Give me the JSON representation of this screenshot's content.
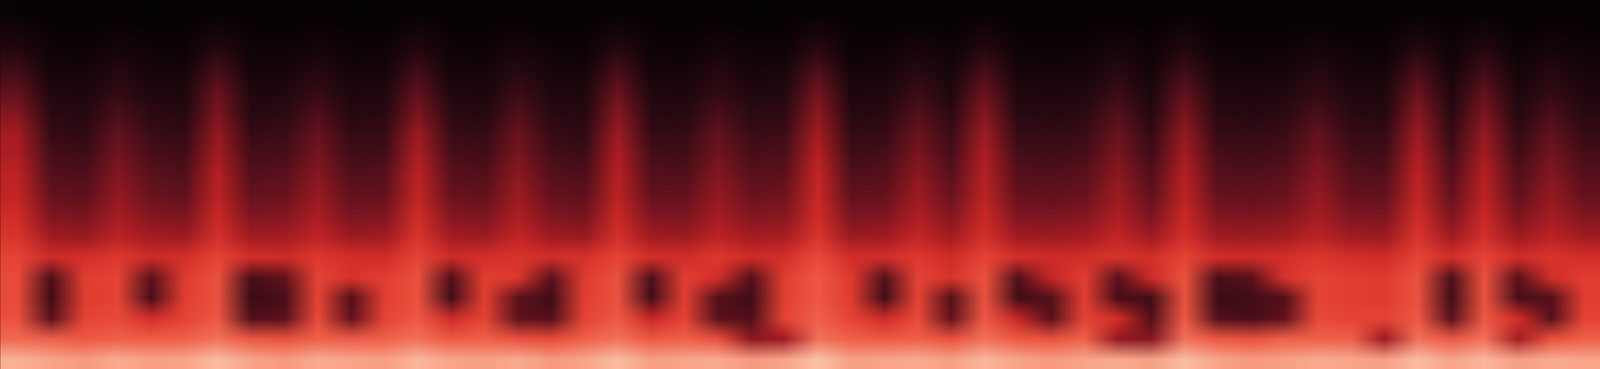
{
  "chart_data": {
    "type": "heatmap",
    "tick_labels": false,
    "zlim": [
      0,
      100
    ],
    "cells": [
      [
        3,
        2,
        2,
        2,
        1,
        2,
        3,
        2,
        2,
        2,
        1,
        2,
        3,
        2,
        2,
        2,
        2,
        1,
        3,
        2,
        2,
        2,
        1,
        2,
        3,
        2,
        2,
        1,
        2,
        3,
        2,
        2,
        2,
        2,
        1,
        3,
        2,
        2,
        2,
        1,
        2,
        2,
        3,
        2,
        3,
        2,
        2,
        2
      ],
      [
        8,
        4,
        3,
        5,
        4,
        4,
        8,
        4,
        3,
        5,
        4,
        3,
        8,
        4,
        4,
        5,
        3,
        4,
        8,
        4,
        3,
        5,
        4,
        4,
        9,
        4,
        3,
        5,
        4,
        8,
        4,
        3,
        4,
        5,
        4,
        8,
        3,
        4,
        4,
        5,
        3,
        4,
        8,
        4,
        8,
        3,
        5,
        4
      ],
      [
        14,
        6,
        5,
        9,
        6,
        5,
        15,
        6,
        6,
        9,
        5,
        6,
        14,
        6,
        5,
        10,
        6,
        5,
        15,
        6,
        5,
        9,
        6,
        6,
        16,
        5,
        6,
        10,
        6,
        15,
        6,
        5,
        6,
        10,
        5,
        14,
        6,
        5,
        6,
        9,
        6,
        5,
        15,
        6,
        14,
        5,
        9,
        6
      ],
      [
        22,
        9,
        8,
        14,
        9,
        8,
        24,
        9,
        9,
        14,
        8,
        9,
        22,
        9,
        8,
        15,
        9,
        8,
        24,
        9,
        8,
        14,
        9,
        10,
        26,
        8,
        9,
        15,
        9,
        24,
        9,
        8,
        9,
        15,
        8,
        22,
        9,
        8,
        9,
        14,
        9,
        8,
        24,
        9,
        22,
        8,
        14,
        9
      ],
      [
        30,
        12,
        11,
        18,
        12,
        11,
        32,
        12,
        12,
        19,
        11,
        12,
        30,
        12,
        11,
        20,
        12,
        11,
        32,
        12,
        11,
        18,
        12,
        13,
        34,
        11,
        12,
        20,
        12,
        32,
        12,
        11,
        12,
        20,
        11,
        30,
        12,
        11,
        12,
        18,
        12,
        11,
        32,
        12,
        30,
        11,
        18,
        12
      ],
      [
        38,
        15,
        14,
        24,
        16,
        14,
        36,
        15,
        16,
        25,
        14,
        15,
        36,
        16,
        14,
        26,
        15,
        14,
        38,
        15,
        14,
        24,
        16,
        17,
        40,
        14,
        15,
        26,
        16,
        38,
        15,
        14,
        16,
        26,
        14,
        36,
        15,
        14,
        16,
        24,
        15,
        14,
        38,
        15,
        36,
        14,
        24,
        15
      ],
      [
        46,
        19,
        17,
        30,
        20,
        18,
        42,
        19,
        20,
        31,
        18,
        19,
        44,
        20,
        18,
        32,
        19,
        17,
        44,
        19,
        18,
        30,
        20,
        21,
        46,
        18,
        19,
        32,
        20,
        44,
        19,
        18,
        20,
        32,
        18,
        42,
        19,
        18,
        20,
        30,
        19,
        18,
        44,
        19,
        42,
        18,
        30,
        19
      ],
      [
        48,
        23,
        21,
        34,
        24,
        22,
        46,
        23,
        24,
        35,
        22,
        23,
        48,
        24,
        22,
        36,
        23,
        21,
        48,
        23,
        22,
        34,
        24,
        25,
        50,
        22,
        23,
        36,
        24,
        48,
        23,
        22,
        24,
        36,
        22,
        46,
        23,
        22,
        24,
        34,
        23,
        22,
        48,
        23,
        46,
        22,
        34,
        23
      ],
      [
        52,
        27,
        25,
        38,
        28,
        26,
        50,
        27,
        28,
        39,
        26,
        27,
        52,
        28,
        26,
        40,
        27,
        25,
        50,
        27,
        26,
        38,
        28,
        29,
        54,
        26,
        27,
        40,
        28,
        50,
        27,
        26,
        28,
        40,
        26,
        50,
        27,
        26,
        28,
        38,
        27,
        26,
        52,
        27,
        50,
        26,
        38,
        27
      ],
      [
        54,
        31,
        29,
        42,
        32,
        30,
        52,
        31,
        32,
        43,
        30,
        31,
        54,
        32,
        30,
        44,
        31,
        29,
        52,
        31,
        30,
        42,
        32,
        33,
        56,
        30,
        31,
        44,
        32,
        52,
        31,
        30,
        32,
        44,
        30,
        52,
        31,
        30,
        32,
        42,
        31,
        30,
        54,
        31,
        52,
        30,
        42,
        31
      ],
      [
        58,
        37,
        35,
        46,
        38,
        36,
        56,
        37,
        38,
        47,
        36,
        37,
        58,
        38,
        36,
        48,
        37,
        35,
        56,
        37,
        36,
        46,
        38,
        39,
        58,
        36,
        37,
        48,
        38,
        56,
        37,
        36,
        38,
        48,
        36,
        56,
        37,
        36,
        38,
        46,
        37,
        36,
        58,
        37,
        56,
        36,
        46,
        37
      ],
      [
        62,
        45,
        43,
        52,
        46,
        44,
        60,
        45,
        46,
        53,
        44,
        45,
        62,
        46,
        44,
        54,
        45,
        43,
        60,
        45,
        44,
        52,
        46,
        47,
        62,
        44,
        45,
        54,
        46,
        60,
        45,
        44,
        46,
        54,
        44,
        60,
        45,
        44,
        46,
        52,
        45,
        44,
        62,
        45,
        60,
        44,
        52,
        45
      ],
      [
        68,
        58,
        60,
        64,
        58,
        60,
        68,
        60,
        58,
        64,
        60,
        59,
        68,
        58,
        60,
        62,
        60,
        61,
        68,
        60,
        59,
        64,
        58,
        60,
        70,
        59,
        60,
        64,
        58,
        68,
        60,
        58,
        59,
        62,
        60,
        68,
        59,
        58,
        60,
        64,
        60,
        58,
        68,
        60,
        68,
        59,
        62,
        60
      ],
      [
        70,
        25,
        66,
        68,
        28,
        65,
        72,
        24,
        30,
        68,
        62,
        66,
        72,
        26,
        66,
        64,
        28,
        65,
        72,
        25,
        66,
        60,
        26,
        66,
        74,
        65,
        27,
        68,
        62,
        72,
        26,
        55,
        66,
        28,
        58,
        72,
        24,
        28,
        62,
        68,
        66,
        65,
        72,
        25,
        72,
        28,
        60,
        66
      ],
      [
        70,
        22,
        65,
        68,
        24,
        66,
        72,
        20,
        24,
        68,
        26,
        66,
        72,
        22,
        66,
        28,
        22,
        66,
        72,
        22,
        66,
        26,
        22,
        66,
        74,
        65,
        22,
        68,
        26,
        72,
        22,
        26,
        66,
        24,
        22,
        72,
        20,
        22,
        26,
        68,
        66,
        65,
        72,
        22,
        72,
        24,
        26,
        66
      ],
      [
        72,
        28,
        68,
        70,
        60,
        68,
        74,
        26,
        28,
        70,
        30,
        68,
        74,
        58,
        68,
        30,
        26,
        68,
        74,
        56,
        68,
        28,
        26,
        68,
        76,
        68,
        58,
        70,
        30,
        74,
        55,
        28,
        68,
        60,
        26,
        74,
        26,
        24,
        30,
        70,
        68,
        68,
        74,
        28,
        74,
        60,
        28,
        68
      ],
      [
        78,
        76,
        74,
        76,
        75,
        76,
        80,
        74,
        72,
        76,
        75,
        76,
        80,
        74,
        76,
        72,
        70,
        76,
        80,
        74,
        76,
        72,
        40,
        45,
        80,
        76,
        74,
        76,
        72,
        80,
        74,
        72,
        76,
        42,
        38,
        80,
        74,
        72,
        76,
        76,
        76,
        44,
        80,
        74,
        80,
        46,
        72,
        76
      ],
      [
        92,
        90,
        88,
        91,
        89,
        90,
        94,
        90,
        88,
        91,
        90,
        89,
        93,
        90,
        89,
        91,
        88,
        90,
        94,
        89,
        90,
        91,
        88,
        90,
        95,
        89,
        90,
        91,
        89,
        93,
        90,
        88,
        90,
        91,
        89,
        94,
        90,
        88,
        89,
        91,
        90,
        89,
        94,
        90,
        93,
        89,
        91,
        90
      ]
    ]
  }
}
